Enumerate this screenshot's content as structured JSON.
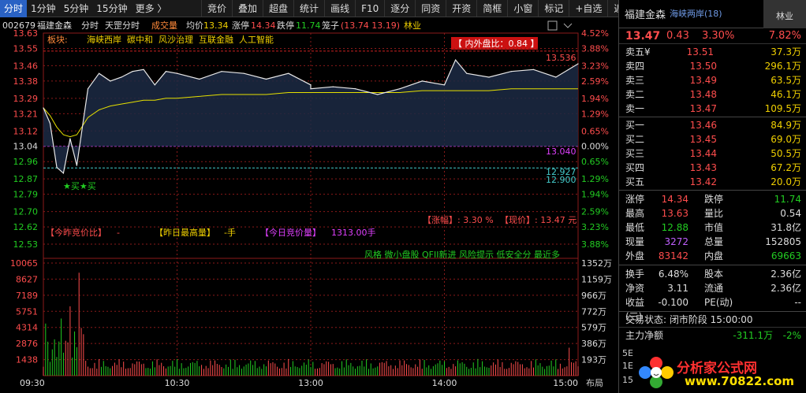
{
  "toolbar": {
    "left_items": [
      "分时",
      "1分钟",
      "5分钟",
      "15分钟",
      "更多 〉"
    ],
    "active_index": 0,
    "right_items": [
      "竞价",
      "叠加",
      "超盘",
      "统计",
      "画线",
      "F10",
      "逐分",
      "同资",
      "开资",
      "简框",
      "小窗",
      "标记",
      "+自选",
      "返回"
    ]
  },
  "chart_header": {
    "code": "002679",
    "name": "福建金森",
    "mode": "分时",
    "sub_mode": "天罡分时",
    "volume_label": "成交量",
    "avg_label": "均价",
    "avg_value": "13.34",
    "limit_up_label": "涨停",
    "limit_up_value": "14.34",
    "limit_down_label": "跌停",
    "limit_down_value": "11.74",
    "spread_label": "笼子",
    "spread_value": "(13.74 13.19)",
    "industry": "林业"
  },
  "sector_line": {
    "label": "板块:",
    "tags": [
      "海峡西岸",
      "碳中和",
      "风沙治理",
      "互联金融",
      "人工智能"
    ]
  },
  "inner_outer_ratio": "【 内外盘比：0.84 】",
  "chart_annotations": {
    "high_marker": "13.536",
    "prev_close_marker": "13.040",
    "low_marker_a": "12.927",
    "low_marker_b": "12.900",
    "buy_signals": "★买★买",
    "change_label": "【涨幅】: 3.30 %",
    "price_label": "【现价】: 13.47 元",
    "auction_ratio_label": "【今昨竞价比】",
    "auction_ratio_value": "-",
    "yesterday_high_label": "【昨日最高量】",
    "yesterday_high_value": "-手",
    "today_auction_label": "【今日竞价量】",
    "today_auction_value": "1313.00手",
    "style_tags": "风格 微小盘股 QFII新进 风险提示 低安全分 最近多"
  },
  "price_axis_left": [
    "13.63",
    "13.55",
    "13.46",
    "13.38",
    "13.29",
    "13.21",
    "13.12",
    "13.04",
    "12.96",
    "12.87",
    "12.79",
    "12.70",
    "12.62",
    "12.53"
  ],
  "pct_axis_right": [
    "4.52%",
    "3.88%",
    "3.23%",
    "2.59%",
    "1.94%",
    "1.29%",
    "0.65%",
    "0.00%",
    "0.65%",
    "1.29%",
    "1.94%",
    "2.59%",
    "3.23%",
    "3.88%"
  ],
  "volume_axis_left": [
    "10065",
    "8627",
    "7189",
    "5751",
    "4314",
    "2876",
    "1438"
  ],
  "volume_axis_right": [
    "1352万",
    "1159万",
    "966万",
    "772万",
    "579万",
    "386万",
    "193万"
  ],
  "time_axis": [
    "09:30",
    "10:30",
    "13:00",
    "14:00",
    "15:00"
  ],
  "chart_data": {
    "type": "line",
    "title": "",
    "ylim": [
      12.53,
      13.63
    ],
    "prev_close": 13.04,
    "x": [
      "09:30",
      "09:33",
      "09:36",
      "09:39",
      "09:42",
      "09:45",
      "09:50",
      "09:55",
      "10:00",
      "10:05",
      "10:10",
      "10:15",
      "10:20",
      "10:25",
      "10:30",
      "10:40",
      "10:50",
      "11:00",
      "11:10",
      "11:20",
      "11:30",
      "13:00",
      "13:10",
      "13:20",
      "13:30",
      "13:40",
      "13:50",
      "14:00",
      "14:05",
      "14:10",
      "14:20",
      "14:30",
      "14:40",
      "14:50",
      "15:00"
    ],
    "series": [
      {
        "values": [
          13.24,
          13.16,
          12.93,
          12.9,
          13.08,
          12.94,
          13.34,
          13.42,
          13.38,
          13.4,
          13.43,
          13.44,
          13.36,
          13.43,
          13.42,
          13.39,
          13.43,
          13.42,
          13.39,
          13.42,
          13.36,
          13.34,
          13.35,
          13.34,
          13.31,
          13.34,
          13.38,
          13.36,
          13.49,
          13.42,
          13.4,
          13.43,
          13.44,
          13.4,
          13.47
        ]
      },
      {
        "values": [
          13.24,
          13.2,
          13.14,
          13.1,
          13.09,
          13.1,
          13.19,
          13.23,
          13.25,
          13.26,
          13.27,
          13.28,
          13.28,
          13.29,
          13.29,
          13.3,
          13.31,
          13.31,
          13.31,
          13.32,
          13.32,
          13.32,
          13.32,
          13.32,
          13.32,
          13.32,
          13.33,
          13.33,
          13.33,
          13.33,
          13.33,
          13.34,
          13.34,
          13.34,
          13.34
        ]
      }
    ],
    "volume_ylim": [
      0,
      10065
    ]
  },
  "panel": {
    "name": "福建金森",
    "sector": "海峡两岸",
    "sector_count": "(18)",
    "industry": "林业",
    "industry_pct": "7.82%",
    "price": "13.47",
    "change": "0.43",
    "change_pct": "3.30%",
    "asks": [
      {
        "label": "卖五",
        "price": "13.51",
        "vol": "37.3万",
        "mark": "¥"
      },
      {
        "label": "卖四",
        "price": "13.50",
        "vol": "296.1万"
      },
      {
        "label": "卖三",
        "price": "13.49",
        "vol": "63.5万"
      },
      {
        "label": "卖二",
        "price": "13.48",
        "vol": "46.1万"
      },
      {
        "label": "卖一",
        "price": "13.47",
        "vol": "109.5万"
      }
    ],
    "bids": [
      {
        "label": "买一",
        "price": "13.46",
        "vol": "84.9万"
      },
      {
        "label": "买二",
        "price": "13.45",
        "vol": "69.0万"
      },
      {
        "label": "买三",
        "price": "13.44",
        "vol": "50.5万"
      },
      {
        "label": "买四",
        "price": "13.43",
        "vol": "67.2万"
      },
      {
        "label": "买五",
        "price": "13.42",
        "vol": "20.0万"
      }
    ],
    "stats1": [
      {
        "l1": "涨停",
        "v1": "14.34",
        "c1": "red",
        "l2": "跌停",
        "v2": "11.74",
        "c2": "green"
      },
      {
        "l1": "最高",
        "v1": "13.63",
        "c1": "red",
        "l2": "量比",
        "v2": "0.54",
        "c2": "white"
      },
      {
        "l1": "最低",
        "v1": "12.88",
        "c1": "green",
        "l2": "市值",
        "v2": "31.8亿",
        "c2": "white"
      },
      {
        "l1": "现量",
        "v1": "3272",
        "c1": "purple",
        "l2": "总量",
        "v2": "152805",
        "c2": "white"
      },
      {
        "l1": "外盘",
        "v1": "83142",
        "c1": "red",
        "l2": "内盘",
        "v2": "69663",
        "c2": "green"
      }
    ],
    "stats2": [
      {
        "l1": "换手",
        "v1": "6.48%",
        "c1": "white",
        "l2": "股本",
        "v2": "2.36亿",
        "c2": "white"
      },
      {
        "l1": "净资",
        "v1": "3.11",
        "c1": "white",
        "l2": "流通",
        "v2": "2.36亿",
        "c2": "white"
      },
      {
        "l1": "收益(三)",
        "v1": "-0.100",
        "c1": "white",
        "l2": "PE(动)",
        "v2": "--",
        "c2": "white"
      }
    ],
    "trade_status": "交易状态: 闭市阶段 15:00:00",
    "main_flow_label": "主力净额",
    "main_flow_value": "-311.1万",
    "main_flow_pct": "-2%",
    "side_tabs": [
      "5E",
      "1E",
      "15"
    ],
    "bottom_tab": "布局",
    "watermark_text": "分析家公式网",
    "watermark_url": "www.70822.com"
  },
  "colors": {
    "price_line": "#e8e8e8",
    "avg_line": "#e6e000",
    "prev_close": "#e040ff",
    "grid": "#8b1a1a",
    "up": "#ff4d4d",
    "down": "#22cc22"
  }
}
